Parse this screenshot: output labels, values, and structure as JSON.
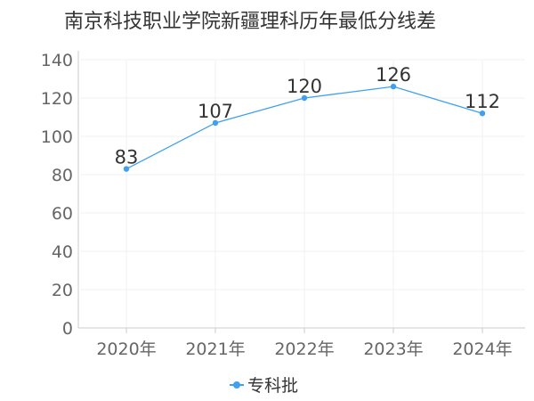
{
  "colors": {
    "series": "#3fa0f2",
    "axis": "#cccccc",
    "grid": "#f2f2f2",
    "text": "#333333",
    "tick_text": "#666666"
  },
  "chart_data": {
    "type": "line",
    "title": "南京科技职业学院新疆理科历年最低分线差",
    "categories": [
      "2020年",
      "2021年",
      "2022年",
      "2023年",
      "2024年"
    ],
    "series": [
      {
        "name": "专科批",
        "values": [
          83,
          107,
          120,
          126,
          112
        ]
      }
    ],
    "ylim": [
      0,
      140
    ],
    "yticks": [
      0,
      20,
      40,
      60,
      80,
      100,
      120,
      140
    ],
    "grid": true,
    "legend": "bottom",
    "data_labels": true
  }
}
